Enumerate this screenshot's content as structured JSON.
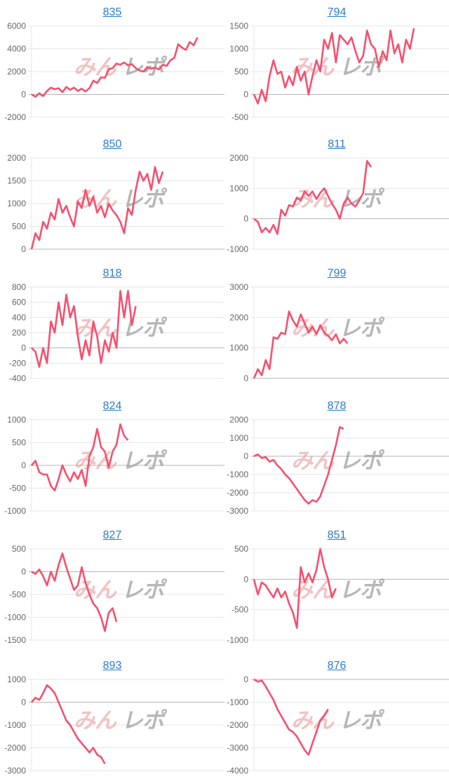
{
  "watermark": {
    "part1": "みん",
    "part2": "レポ"
  },
  "colors": {
    "line": "#f5506e",
    "grid": "#e6e6e6",
    "zero": "#b5b5b5",
    "tick_text": "#666666",
    "title_link": "#2a7ad0"
  },
  "chart_data": [
    {
      "type": "line",
      "title": "835",
      "yticks": [
        6000,
        4000,
        2000,
        0,
        -2000
      ],
      "ylim": [
        -2000,
        6000
      ],
      "grid": true,
      "values": [
        0,
        -200,
        100,
        -150,
        300,
        600,
        450,
        550,
        200,
        650,
        400,
        600,
        300,
        500,
        250,
        550,
        1200,
        1000,
        1500,
        1450,
        2200,
        2300,
        2700,
        2600,
        2800,
        2550,
        2650,
        2300,
        2100,
        2000,
        2400,
        2250,
        2350,
        2200,
        2600,
        2500,
        3000,
        3200,
        4400,
        4100,
        3900,
        4600,
        4300,
        5000
      ]
    },
    {
      "type": "line",
      "title": "794",
      "yticks": [
        1500,
        1000,
        500,
        0,
        -500
      ],
      "ylim": [
        -500,
        1500
      ],
      "grid": true,
      "values": [
        0,
        -200,
        100,
        -150,
        400,
        750,
        450,
        500,
        150,
        400,
        200,
        600,
        300,
        500,
        0,
        400,
        750,
        500,
        1200,
        1000,
        1350,
        700,
        1300,
        1200,
        1100,
        1250,
        950,
        700,
        850,
        1400,
        1100,
        1000,
        600,
        950,
        750,
        1400,
        900,
        1100,
        700,
        1200,
        1000,
        1450
      ]
    },
    {
      "type": "line",
      "title": "850",
      "yticks": [
        2000,
        1500,
        1000,
        500,
        0
      ],
      "ylim": [
        0,
        2000
      ],
      "grid": true,
      "values": [
        0,
        350,
        200,
        600,
        450,
        800,
        650,
        1100,
        800,
        950,
        700,
        500,
        1050,
        900,
        1300,
        950,
        1150,
        800,
        950,
        700,
        1000,
        850,
        750,
        600,
        350,
        900,
        750,
        1300,
        1700,
        1500,
        1650,
        1300,
        1800,
        1450,
        1700
      ]
    },
    {
      "type": "line",
      "title": "811",
      "yticks": [
        2000,
        1000,
        0,
        -1000
      ],
      "ylim": [
        -1000,
        2000
      ],
      "grid": true,
      "values": [
        0,
        -100,
        -450,
        -300,
        -450,
        -200,
        -500,
        300,
        100,
        450,
        400,
        700,
        600,
        900,
        750,
        900,
        650,
        850,
        1000,
        750,
        500,
        300,
        0,
        500,
        700,
        500,
        400,
        600,
        850,
        1900,
        1700
      ]
    },
    {
      "type": "line",
      "title": "818",
      "yticks": [
        800,
        600,
        400,
        200,
        0,
        -200,
        -400
      ],
      "ylim": [
        -400,
        800
      ],
      "grid": true,
      "values": [
        0,
        -50,
        -250,
        0,
        -200,
        350,
        200,
        600,
        300,
        700,
        400,
        550,
        150,
        -150,
        100,
        -100,
        350,
        150,
        -200,
        100,
        -50,
        200,
        0,
        750,
        400,
        750,
        300,
        550
      ]
    },
    {
      "type": "line",
      "title": "799",
      "yticks": [
        3000,
        2000,
        1000,
        0
      ],
      "ylim": [
        0,
        3000
      ],
      "grid": true,
      "values": [
        0,
        300,
        100,
        600,
        300,
        1350,
        1300,
        1500,
        1450,
        2200,
        1900,
        1700,
        2100,
        1800,
        1500,
        1700,
        1450,
        1750,
        1500,
        1400,
        1250,
        1450,
        1150,
        1300,
        1150
      ]
    },
    {
      "type": "line",
      "title": "824",
      "yticks": [
        1000,
        500,
        0,
        -500,
        -1000
      ],
      "ylim": [
        -1000,
        1000
      ],
      "grid": true,
      "values": [
        0,
        100,
        -150,
        -200,
        -200,
        -450,
        -550,
        -300,
        0,
        -200,
        -350,
        -150,
        -300,
        -100,
        -450,
        200,
        400,
        800,
        400,
        300,
        -50,
        300,
        450,
        900,
        650,
        550
      ]
    },
    {
      "type": "line",
      "title": "878",
      "yticks": [
        2000,
        1000,
        0,
        -1000,
        -2000,
        -3000
      ],
      "ylim": [
        -3000,
        2000
      ],
      "grid": true,
      "values": [
        0,
        100,
        -100,
        -50,
        -300,
        -200,
        -500,
        -700,
        -1000,
        -1200,
        -1500,
        -1800,
        -2100,
        -2400,
        -2600,
        -2400,
        -2500,
        -2200,
        -1600,
        -1000,
        -200,
        600,
        1600,
        1500
      ]
    },
    {
      "type": "line",
      "title": "827",
      "yticks": [
        500,
        0,
        -500,
        -1000,
        -1500
      ],
      "ylim": [
        -1500,
        500
      ],
      "grid": true,
      "values": [
        0,
        -50,
        50,
        -100,
        -300,
        0,
        -200,
        150,
        400,
        100,
        -150,
        -400,
        -300,
        100,
        -250,
        -500,
        -700,
        -800,
        -1000,
        -1300,
        -900,
        -800,
        -1100
      ]
    },
    {
      "type": "line",
      "title": "851",
      "yticks": [
        500,
        0,
        -500,
        -1000
      ],
      "ylim": [
        -1000,
        500
      ],
      "grid": true,
      "values": [
        0,
        -250,
        -50,
        -100,
        -200,
        -300,
        -150,
        -300,
        -200,
        -400,
        -550,
        -800,
        200,
        -50,
        100,
        -50,
        150,
        500,
        200,
        0,
        -300,
        -150
      ]
    },
    {
      "type": "line",
      "title": "893",
      "yticks": [
        1000,
        0,
        -1000,
        -2000,
        -3000
      ],
      "ylim": [
        -3000,
        1000
      ],
      "grid": true,
      "values": [
        0,
        200,
        100,
        400,
        750,
        600,
        400,
        0,
        -400,
        -800,
        -1000,
        -1300,
        -1600,
        -1800,
        -2000,
        -2200,
        -2000,
        -2300,
        -2400,
        -2700
      ]
    },
    {
      "type": "line",
      "title": "876",
      "yticks": [
        0,
        -1000,
        -2000,
        -3000,
        -4000
      ],
      "ylim": [
        -4000,
        0
      ],
      "grid": true,
      "values": [
        0,
        -100,
        -50,
        -300,
        -600,
        -900,
        -1300,
        -1600,
        -1900,
        -2200,
        -2300,
        -2500,
        -2800,
        -3100,
        -3300,
        -2800,
        -2300,
        -1800,
        -1600,
        -1300
      ]
    }
  ]
}
